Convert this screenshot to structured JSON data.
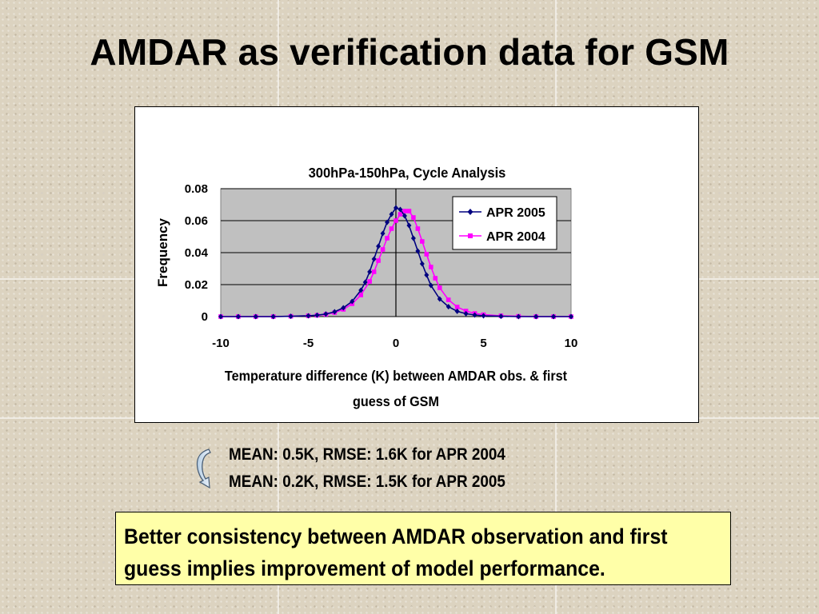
{
  "slide": {
    "title": "AMDAR as verification data for GSM",
    "stats": [
      "MEAN: 0.5K, RMSE: 1.6K for APR 2004",
      "MEAN: 0.2K, RMSE: 1.5K for APR 2005"
    ],
    "conclusion": "Better consistency between AMDAR observation and first guess implies improvement of model performance.",
    "stats_icon": "curved-arrow-icon"
  },
  "chart_data": {
    "type": "line",
    "title": "300hPa-150hPa, Cycle Analysis",
    "xlabel": "Temperature difference (K) between AMDAR obs. & first guess of GSM",
    "ylabel": "Frequency",
    "xlim": [
      -10,
      10
    ],
    "ylim": [
      0,
      0.08
    ],
    "x_ticks": [
      -10,
      -5,
      0,
      5,
      10
    ],
    "y_ticks": [
      0,
      0.02,
      0.04,
      0.06,
      0.08
    ],
    "y_tick_labels": [
      "0",
      "0.02",
      "0.04",
      "0.06",
      "0.08"
    ],
    "grid": "horizontal",
    "legend_position": "top-right",
    "plot_background": "#c0c0c0",
    "series": [
      {
        "name": "APR 2005",
        "color": "#000080",
        "marker": "diamond",
        "x": [
          -10,
          -9,
          -8,
          -7,
          -6,
          -5,
          -4.5,
          -4,
          -3.5,
          -3,
          -2.5,
          -2,
          -1.75,
          -1.5,
          -1.25,
          -1,
          -0.75,
          -0.5,
          -0.25,
          0,
          0.25,
          0.5,
          0.75,
          1,
          1.25,
          1.5,
          1.75,
          2,
          2.5,
          3,
          3.5,
          4,
          4.5,
          5,
          6,
          7,
          8,
          9,
          10
        ],
        "y": [
          0,
          0,
          0,
          0,
          0.0002,
          0.0005,
          0.0009,
          0.0016,
          0.003,
          0.0055,
          0.0095,
          0.0165,
          0.0215,
          0.028,
          0.036,
          0.044,
          0.052,
          0.059,
          0.064,
          0.068,
          0.067,
          0.063,
          0.057,
          0.049,
          0.041,
          0.033,
          0.026,
          0.0195,
          0.011,
          0.0062,
          0.0033,
          0.0018,
          0.001,
          0.0005,
          0.0002,
          0,
          0,
          0,
          0
        ]
      },
      {
        "name": "APR 2004",
        "color": "#ff00ff",
        "marker": "square",
        "x": [
          -10,
          -9,
          -8,
          -7,
          -6,
          -5,
          -4.5,
          -4,
          -3.5,
          -3,
          -2.5,
          -2,
          -1.5,
          -1.25,
          -1,
          -0.75,
          -0.5,
          -0.25,
          0,
          0.25,
          0.5,
          0.75,
          1,
          1.25,
          1.5,
          1.75,
          2,
          2.25,
          2.5,
          3,
          3.5,
          4,
          4.5,
          5,
          6,
          7,
          8,
          9,
          10
        ],
        "y": [
          0,
          0,
          0,
          0,
          0.0002,
          0.0005,
          0.0008,
          0.0014,
          0.0025,
          0.0045,
          0.008,
          0.0135,
          0.022,
          0.028,
          0.035,
          0.042,
          0.049,
          0.055,
          0.06,
          0.064,
          0.066,
          0.066,
          0.062,
          0.055,
          0.047,
          0.039,
          0.031,
          0.024,
          0.018,
          0.0105,
          0.006,
          0.0035,
          0.002,
          0.0012,
          0.0005,
          0.0002,
          0,
          0,
          0
        ]
      }
    ]
  }
}
